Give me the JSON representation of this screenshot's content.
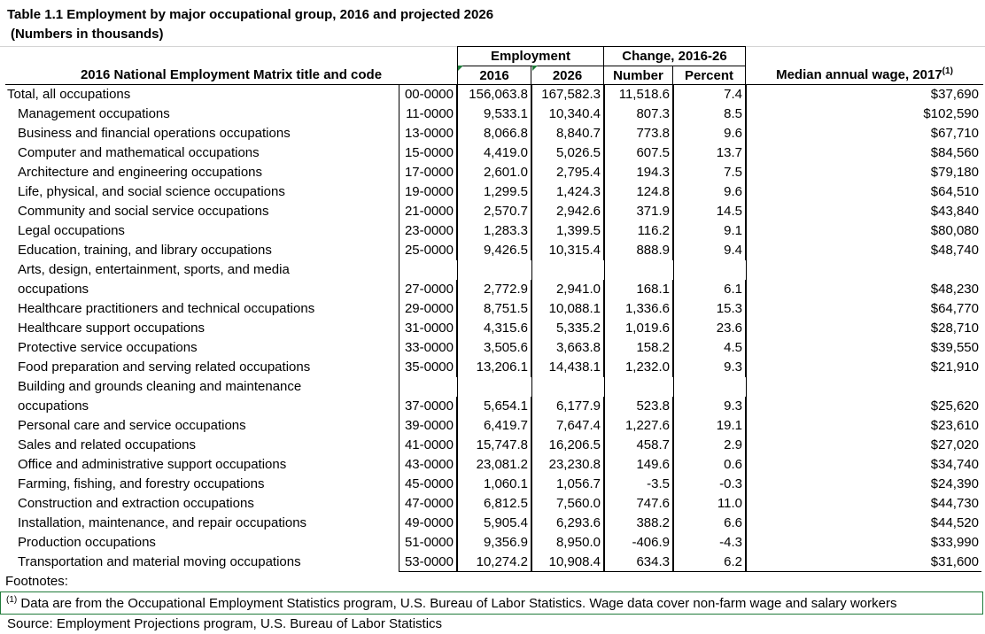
{
  "title": "Table 1.1 Employment by major occupational group, 2016 and projected 2026",
  "subtitle": "(Numbers in thousands)",
  "headers": {
    "employment": "Employment",
    "change": "Change, 2016-26",
    "matrix_title": "2016 National Employment Matrix title and code",
    "y2016": "2016",
    "y2026": "2026",
    "number": "Number",
    "percent": "Percent",
    "wage": "Median annual wage, 2017",
    "wage_sup": "(1)"
  },
  "rows": [
    {
      "title": "Total, all occupations",
      "code": "00-0000",
      "e2016": "156,063.8",
      "e2026": "167,582.3",
      "number": "11,518.6",
      "percent": "7.4",
      "wage": "$37,690"
    },
    {
      "title": "Management occupations",
      "code": "11-0000",
      "e2016": "9,533.1",
      "e2026": "10,340.4",
      "number": "807.3",
      "percent": "8.5",
      "wage": "$102,590"
    },
    {
      "title": "Business and financial operations occupations",
      "code": "13-0000",
      "e2016": "8,066.8",
      "e2026": "8,840.7",
      "number": "773.8",
      "percent": "9.6",
      "wage": "$67,710"
    },
    {
      "title": "Computer and mathematical occupations",
      "code": "15-0000",
      "e2016": "4,419.0",
      "e2026": "5,026.5",
      "number": "607.5",
      "percent": "13.7",
      "wage": "$84,560"
    },
    {
      "title": "Architecture and engineering occupations",
      "code": "17-0000",
      "e2016": "2,601.0",
      "e2026": "2,795.4",
      "number": "194.3",
      "percent": "7.5",
      "wage": "$79,180"
    },
    {
      "title": "Life, physical, and social science occupations",
      "code": "19-0000",
      "e2016": "1,299.5",
      "e2026": "1,424.3",
      "number": "124.8",
      "percent": "9.6",
      "wage": "$64,510"
    },
    {
      "title": "Community and social service occupations",
      "code": "21-0000",
      "e2016": "2,570.7",
      "e2026": "2,942.6",
      "number": "371.9",
      "percent": "14.5",
      "wage": "$43,840"
    },
    {
      "title": "Legal occupations",
      "code": "23-0000",
      "e2016": "1,283.3",
      "e2026": "1,399.5",
      "number": "116.2",
      "percent": "9.1",
      "wage": "$80,080"
    },
    {
      "title": "Education, training, and library occupations",
      "code": "25-0000",
      "e2016": "9,426.5",
      "e2026": "10,315.4",
      "number": "888.9",
      "percent": "9.4",
      "wage": "$48,740"
    },
    {
      "title": "Arts, design, entertainment, sports, and media",
      "title2": "occupations",
      "code": "27-0000",
      "e2016": "2,772.9",
      "e2026": "2,941.0",
      "number": "168.1",
      "percent": "6.1",
      "wage": "$48,230"
    },
    {
      "title": "Healthcare practitioners and technical occupations",
      "code": "29-0000",
      "e2016": "8,751.5",
      "e2026": "10,088.1",
      "number": "1,336.6",
      "percent": "15.3",
      "wage": "$64,770"
    },
    {
      "title": "Healthcare support occupations",
      "code": "31-0000",
      "e2016": "4,315.6",
      "e2026": "5,335.2",
      "number": "1,019.6",
      "percent": "23.6",
      "wage": "$28,710"
    },
    {
      "title": "Protective service occupations",
      "code": "33-0000",
      "e2016": "3,505.6",
      "e2026": "3,663.8",
      "number": "158.2",
      "percent": "4.5",
      "wage": "$39,550"
    },
    {
      "title": "Food preparation and serving related occupations",
      "code": "35-0000",
      "e2016": "13,206.1",
      "e2026": "14,438.1",
      "number": "1,232.0",
      "percent": "9.3",
      "wage": "$21,910"
    },
    {
      "title": "Building and grounds cleaning and maintenance",
      "title2": "occupations",
      "code": "37-0000",
      "e2016": "5,654.1",
      "e2026": "6,177.9",
      "number": "523.8",
      "percent": "9.3",
      "wage": "$25,620"
    },
    {
      "title": "Personal care and service occupations",
      "code": "39-0000",
      "e2016": "6,419.7",
      "e2026": "7,647.4",
      "number": "1,227.6",
      "percent": "19.1",
      "wage": "$23,610"
    },
    {
      "title": "Sales and related occupations",
      "code": "41-0000",
      "e2016": "15,747.8",
      "e2026": "16,206.5",
      "number": "458.7",
      "percent": "2.9",
      "wage": "$27,020"
    },
    {
      "title": "Office and administrative support occupations",
      "code": "43-0000",
      "e2016": "23,081.2",
      "e2026": "23,230.8",
      "number": "149.6",
      "percent": "0.6",
      "wage": "$34,740"
    },
    {
      "title": "Farming, fishing, and forestry occupations",
      "code": "45-0000",
      "e2016": "1,060.1",
      "e2026": "1,056.7",
      "number": "-3.5",
      "percent": "-0.3",
      "wage": "$24,390"
    },
    {
      "title": "Construction and extraction occupations",
      "code": "47-0000",
      "e2016": "6,812.5",
      "e2026": "7,560.0",
      "number": "747.6",
      "percent": "11.0",
      "wage": "$44,730"
    },
    {
      "title": "Installation, maintenance, and repair occupations",
      "code": "49-0000",
      "e2016": "5,905.4",
      "e2026": "6,293.6",
      "number": "388.2",
      "percent": "6.6",
      "wage": "$44,520"
    },
    {
      "title": "Production occupations",
      "code": "51-0000",
      "e2016": "9,356.9",
      "e2026": "8,950.0",
      "number": "-406.9",
      "percent": "-4.3",
      "wage": "$33,990"
    },
    {
      "title": "Transportation and material moving occupations",
      "code": "53-0000",
      "e2016": "10,274.2",
      "e2026": "10,908.4",
      "number": "634.3",
      "percent": "6.2",
      "wage": "$31,600"
    }
  ],
  "footnotes": {
    "label": "Footnotes:",
    "note1_sup": "(1)",
    "note1": " Data are from the Occupational Employment Statistics program, U.S. Bureau of Labor Statistics. Wage data cover non-farm wage and salary workers",
    "source": "Source: Employment Projections program, U.S. Bureau of Labor Statistics"
  }
}
